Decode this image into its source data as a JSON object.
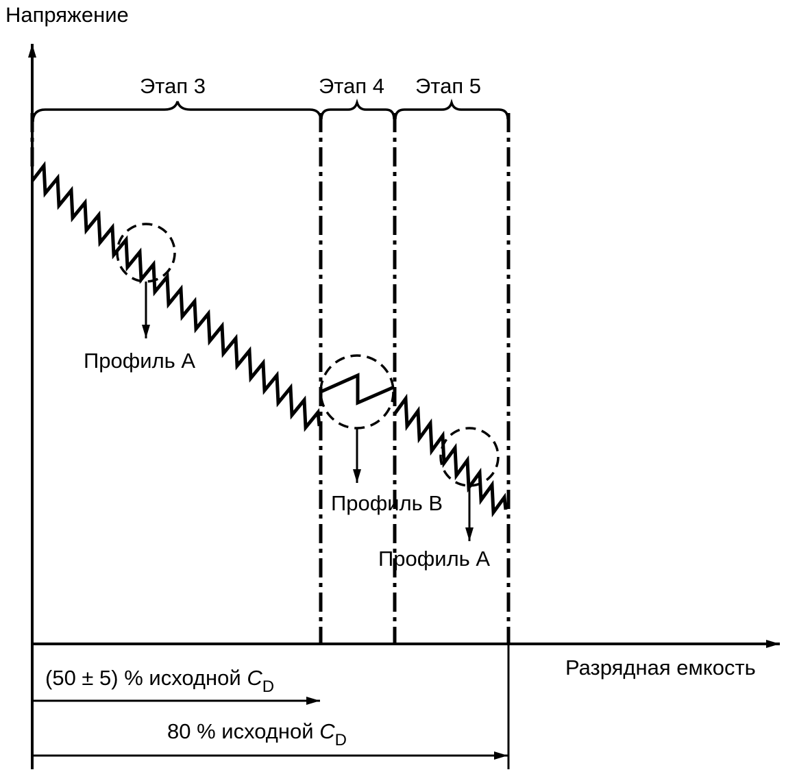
{
  "axes": {
    "y_label": "Напряжение",
    "x_label": "Разрядная емкость"
  },
  "stages": {
    "stage3": "Этап 3",
    "stage4": "Этап 4",
    "stage5": "Этап 5"
  },
  "profiles": {
    "a_first": "Профиль А",
    "b": "Профиль В",
    "a_second": "Профиль А"
  },
  "dimensions": {
    "half_prefix": "(50 ± 5) % исходной ",
    "eighty_prefix": "80 % исходной ",
    "symbol": "C",
    "subscript": "D"
  }
}
